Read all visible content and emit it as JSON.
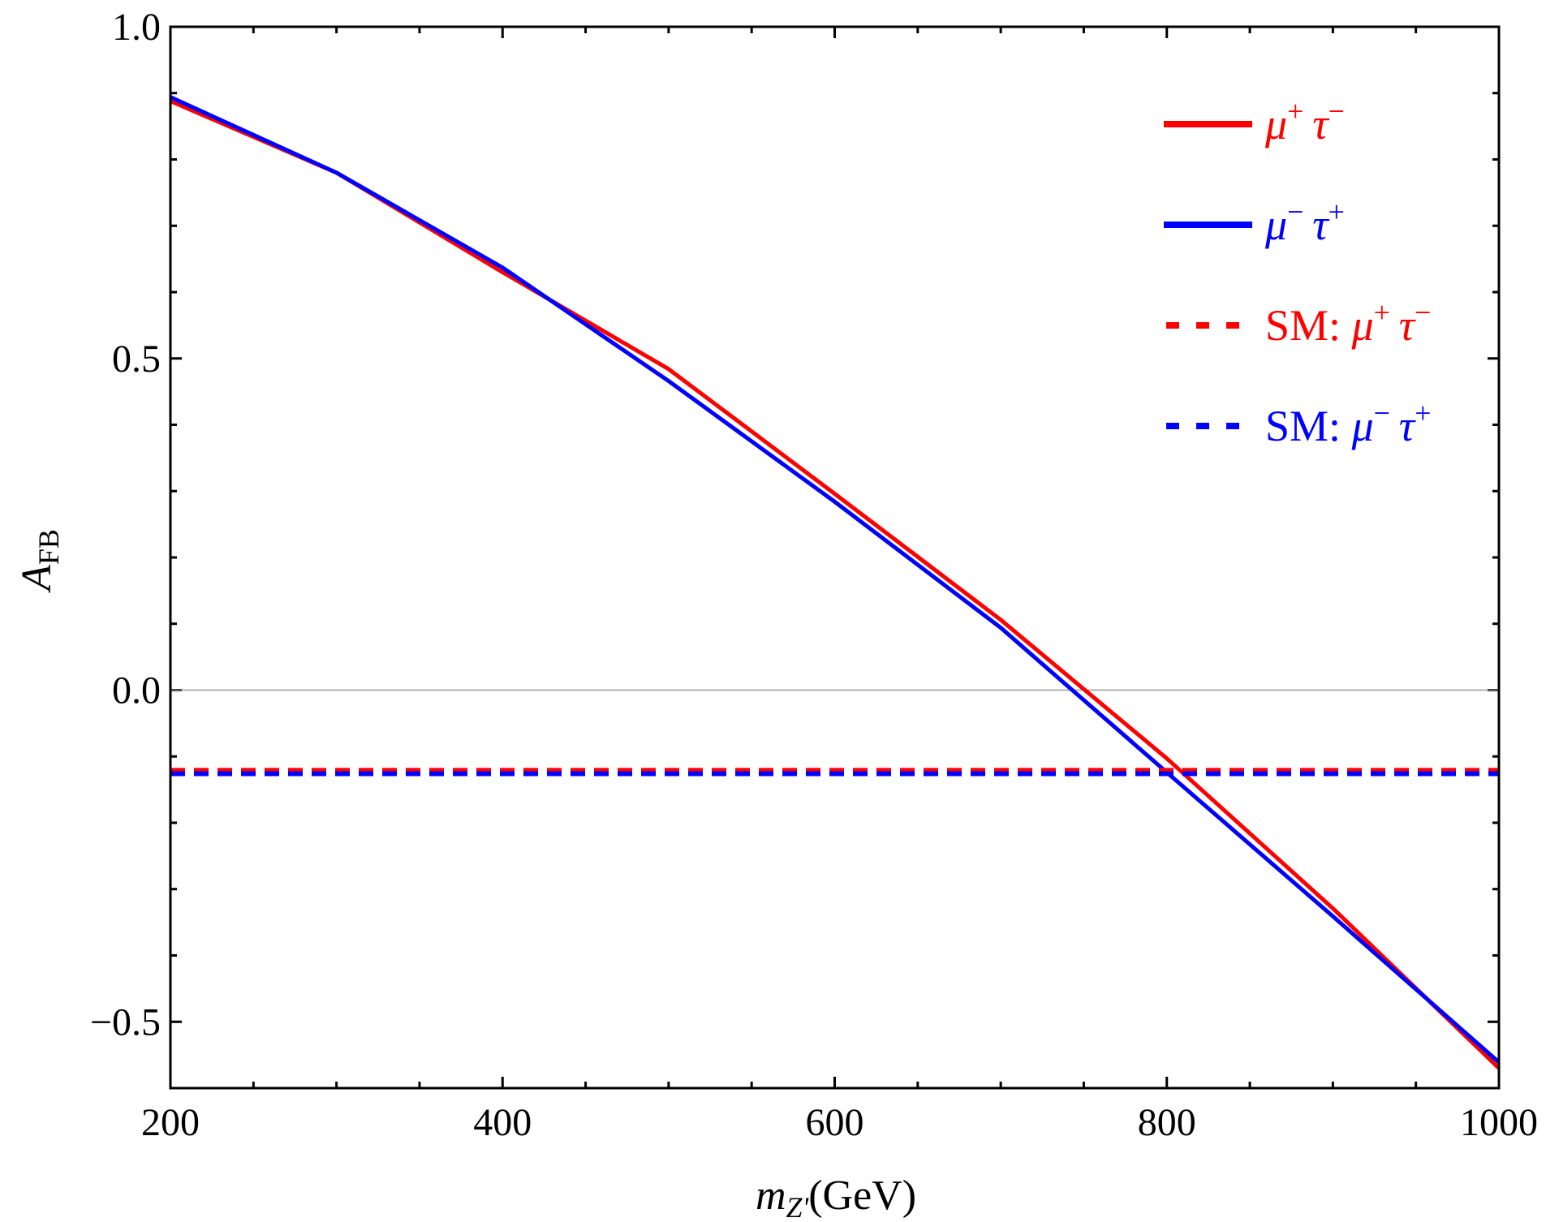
{
  "chart_data": {
    "type": "line",
    "title": "",
    "xlabel": {
      "main": "m",
      "sub": "Z'",
      "unit": "(GeV)"
    },
    "ylabel": {
      "main": "A",
      "sub": "FB"
    },
    "xlim": [
      200,
      1000
    ],
    "ylim": [
      -0.6,
      1.0
    ],
    "xticks": [
      200,
      400,
      600,
      800,
      1000
    ],
    "xtick_labels": [
      "200",
      "400",
      "600",
      "800",
      "1000"
    ],
    "yticks": [
      -0.5,
      0.0,
      0.5,
      1.0
    ],
    "ytick_labels": [
      "−0.5",
      "0.0",
      "0.5",
      "1.0"
    ],
    "x_minor_step": 50,
    "y_minor_step": 0.1,
    "grid": false,
    "zero_line": true,
    "legend_position": "top-right",
    "x": [
      200,
      300,
      400,
      500,
      600,
      700,
      800,
      900,
      1000
    ],
    "series": [
      {
        "name": "μ⁺ τ⁻",
        "legend": {
          "prefix": "",
          "p1": "μ",
          "s1": "+",
          "p2": "τ",
          "s2": "−"
        },
        "color": "#ff0000",
        "style": "solid",
        "values": [
          0.888,
          0.78,
          0.63,
          0.484,
          0.296,
          0.106,
          -0.103,
          -0.329,
          -0.57
        ]
      },
      {
        "name": "μ⁻ τ⁺",
        "legend": {
          "prefix": "",
          "p1": "μ",
          "s1": "−",
          "p2": "τ",
          "s2": "+"
        },
        "color": "#0000ff",
        "style": "solid",
        "values": [
          0.894,
          0.78,
          0.637,
          0.466,
          0.284,
          0.094,
          -0.124,
          -0.341,
          -0.561
        ]
      },
      {
        "name": "SM: μ⁺ τ⁻",
        "legend": {
          "prefix": "SM: ",
          "p1": "μ",
          "s1": "+",
          "p2": "τ",
          "s2": "−"
        },
        "color": "#ff0000",
        "style": "dashed",
        "values": [
          -0.121,
          -0.121,
          -0.121,
          -0.121,
          -0.121,
          -0.121,
          -0.121,
          -0.121,
          -0.121
        ]
      },
      {
        "name": "SM: μ⁻ τ⁺",
        "legend": {
          "prefix": "SM: ",
          "p1": "μ",
          "s1": "−",
          "p2": "τ",
          "s2": "+"
        },
        "color": "#0000ff",
        "style": "dashed",
        "values": [
          -0.126,
          -0.126,
          -0.126,
          -0.126,
          -0.126,
          -0.126,
          -0.126,
          -0.126,
          -0.126
        ]
      }
    ]
  }
}
